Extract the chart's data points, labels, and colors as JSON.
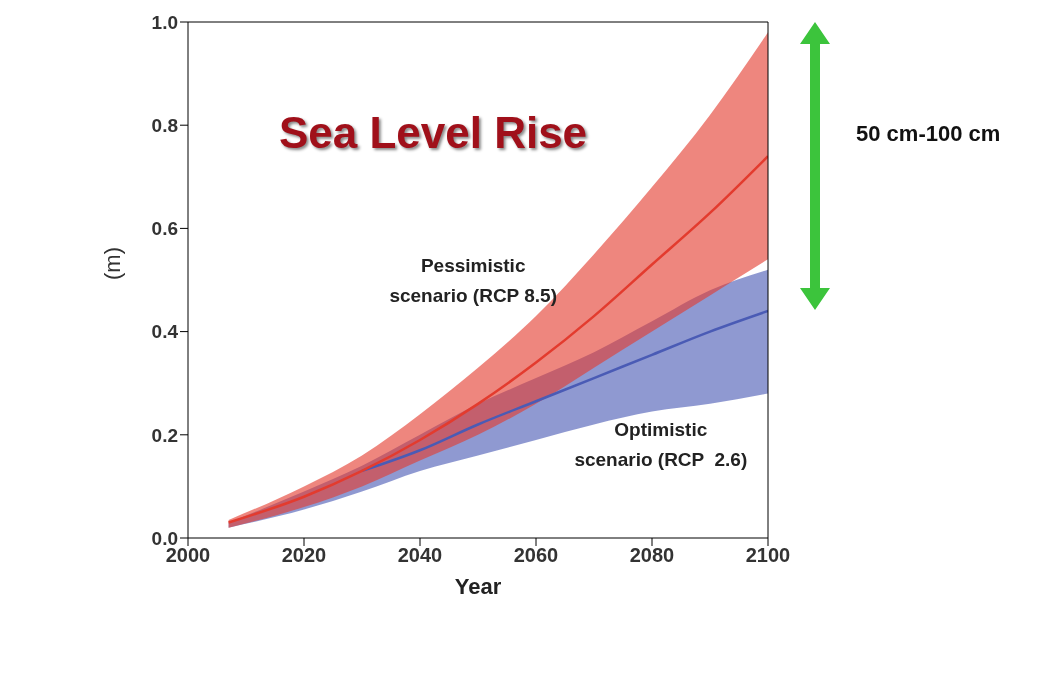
{
  "chart_data": {
    "type": "line",
    "title": "Sea Level Rise",
    "xlabel": "Year",
    "ylabel": "(m)",
    "x": [
      2007,
      2020,
      2030,
      2040,
      2050,
      2060,
      2070,
      2080,
      2090,
      2100
    ],
    "series": [
      {
        "name": "Optimistic scenario (RCP  2.6)",
        "color": "#4a5bb5",
        "values": [
          null,
          null,
          0.13,
          0.17,
          0.22,
          0.265,
          0.31,
          0.355,
          0.4,
          0.44
        ],
        "lower": [
          0.02,
          0.055,
          0.09,
          0.13,
          0.16,
          0.19,
          0.22,
          0.245,
          0.26,
          0.28
        ],
        "upper": [
          0.03,
          0.09,
          0.14,
          0.2,
          0.26,
          0.31,
          0.36,
          0.42,
          0.48,
          0.52
        ]
      },
      {
        "name": "Pessimistic scenario (RCP 8.5)",
        "color": "#e33b2e",
        "values": [
          0.03,
          0.08,
          0.13,
          0.19,
          0.26,
          0.34,
          0.43,
          0.53,
          0.63,
          0.74
        ],
        "lower": [
          0.02,
          0.06,
          0.1,
          0.15,
          0.2,
          0.26,
          0.33,
          0.4,
          0.47,
          0.54
        ],
        "upper": [
          0.035,
          0.1,
          0.16,
          0.24,
          0.33,
          0.43,
          0.55,
          0.68,
          0.82,
          0.98
        ]
      }
    ],
    "xlim": [
      2000,
      2100
    ],
    "xticks": [
      2000,
      2020,
      2040,
      2060,
      2080,
      2100
    ],
    "ylim": [
      0,
      1
    ],
    "yticks": [
      {
        "value": 0,
        "label": "0.0"
      },
      {
        "value": 0.2,
        "label": "0.2"
      },
      {
        "value": 0.4,
        "label": "0.4"
      },
      {
        "value": 0.6,
        "label": "0.6"
      },
      {
        "value": 0.8,
        "label": "0.8"
      },
      {
        "value": 1,
        "label": "1.0"
      }
    ],
    "annotations": [
      "50 cm-100 cm"
    ],
    "grid": false,
    "legend": false,
    "marker": "none",
    "line_style": "solid"
  }
}
